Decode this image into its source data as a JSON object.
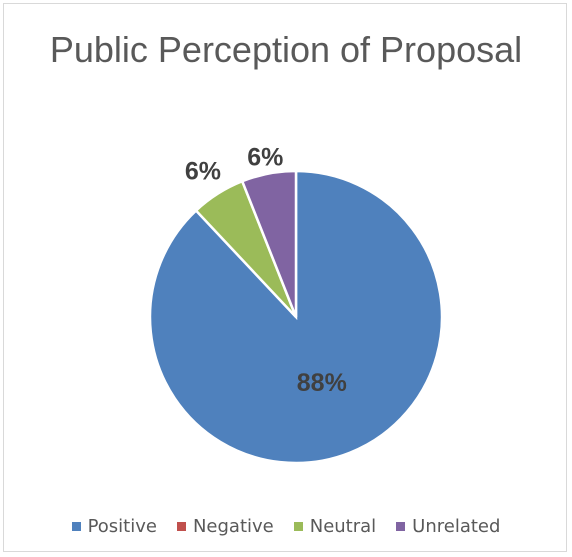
{
  "chart_data": {
    "type": "pie",
    "title": "Public Perception of Proposal",
    "categories": [
      "Positive",
      "Negative",
      "Neutral",
      "Unrelated"
    ],
    "values": [
      88,
      0,
      6,
      6
    ],
    "labels": [
      "88%",
      "",
      "6%",
      "6%"
    ],
    "colors": [
      "#4f81bd",
      "#c0504d",
      "#9bbb59",
      "#8064a2"
    ],
    "legend": "bottom"
  }
}
